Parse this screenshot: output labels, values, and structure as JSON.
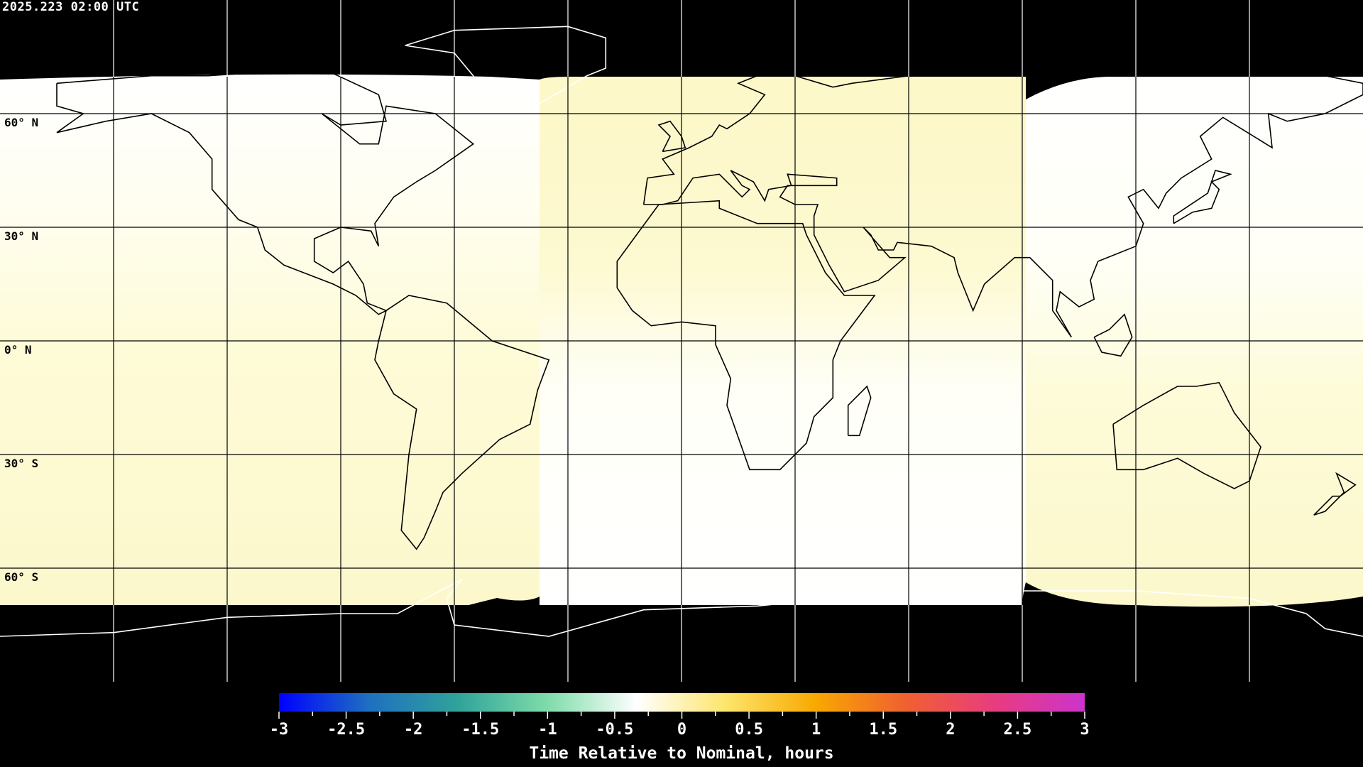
{
  "timestamp": "2025.223 02:00 UTC",
  "lat_labels": [
    "60° N",
    "30° N",
    "0° N",
    "30° S",
    "60° S"
  ],
  "colorbar": {
    "title": "Time Relative to Nominal, hours",
    "range": [
      -3,
      3
    ],
    "tick_labels": [
      "-3",
      "-2.5",
      "-2",
      "-1.5",
      "-1",
      "-0.5",
      "0",
      "0.5",
      "1",
      "1.5",
      "2",
      "2.5",
      "3"
    ],
    "colors": [
      "#0000ff",
      "#1f6fc0",
      "#2fa39a",
      "#7fdcaa",
      "#ffffff",
      "#fde56a",
      "#f8a800",
      "#f06030",
      "#e83c80",
      "#cc33cc"
    ]
  },
  "map": {
    "projection": "equirectangular",
    "no_data_color": "#000000",
    "grid_spacing_deg": 30,
    "regions": [
      {
        "lon_range": [
          -180,
          -37
        ],
        "north_value": 0.0,
        "south_value": 0.15
      },
      {
        "lon_range": [
          -37,
          91
        ],
        "north_value": 0.2,
        "south_value": 0.0
      },
      {
        "lon_range": [
          91,
          180
        ],
        "north_value": 0.0,
        "south_value": 0.15
      }
    ]
  }
}
